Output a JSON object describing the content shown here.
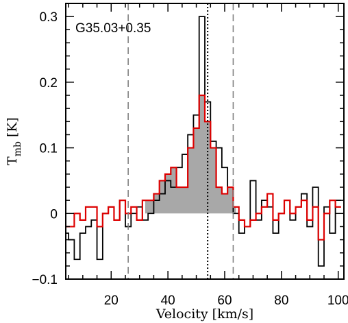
{
  "chart_data": {
    "type": "line",
    "source_label": "G35.03+0.35",
    "xlabel": "Velocity [km/s]",
    "ylabel": {
      "main": "T",
      "subscript": "mb",
      "unit": "[K]"
    },
    "xlim": [
      4,
      102
    ],
    "ylim": [
      -0.1,
      0.32
    ],
    "x_ticks": [
      20,
      40,
      60,
      80,
      100
    ],
    "y_ticks": [
      -0.1,
      0,
      0.1,
      0.2,
      0.3
    ],
    "y_tick_labels": [
      "−0.1",
      "0",
      "0.1",
      "0.2",
      "0.3"
    ],
    "vlines": [
      {
        "x": 26,
        "style": "dashed",
        "color": "#808080"
      },
      {
        "x": 54,
        "style": "dotted",
        "color": "#000000"
      },
      {
        "x": 63,
        "style": "dashed",
        "color": "#808080"
      }
    ],
    "shaded_region": {
      "x_range": [
        32,
        64
      ],
      "series_index": 1,
      "color": "#a8a8a8"
    },
    "series": [
      {
        "style": "step",
        "color": "#000000",
        "x": [
          4,
          6,
          8,
          10,
          12,
          14,
          16,
          18,
          20,
          22,
          24,
          26,
          28,
          30,
          32,
          34,
          36,
          38,
          40,
          42,
          44,
          46,
          48,
          50,
          52,
          54,
          56,
          58,
          60,
          62,
          64,
          66,
          68,
          70,
          72,
          74,
          76,
          78,
          80,
          82,
          84,
          86,
          88,
          90,
          92,
          94,
          96,
          98,
          100
        ],
        "values": [
          -0.03,
          -0.04,
          -0.07,
          -0.03,
          -0.02,
          -0.01,
          -0.07,
          0.0,
          0.01,
          -0.01,
          0.02,
          -0.02,
          0.0,
          0.01,
          -0.01,
          0.0,
          0.02,
          0.03,
          0.05,
          0.04,
          0.07,
          0.09,
          0.12,
          0.15,
          0.3,
          0.17,
          0.11,
          0.1,
          0.07,
          0.04,
          0.0,
          -0.03,
          -0.02,
          0.05,
          -0.01,
          0.02,
          0.01,
          -0.03,
          0.0,
          0.02,
          -0.01,
          0.01,
          0.03,
          -0.02,
          0.04,
          -0.08,
          0.01,
          -0.03,
          0.02
        ]
      },
      {
        "style": "step",
        "color": "#dd0000",
        "x": [
          4,
          6,
          8,
          10,
          12,
          14,
          16,
          18,
          20,
          22,
          24,
          26,
          28,
          30,
          32,
          34,
          36,
          38,
          40,
          42,
          44,
          46,
          48,
          50,
          52,
          54,
          56,
          58,
          60,
          62,
          64,
          66,
          68,
          70,
          72,
          74,
          76,
          78,
          80,
          82,
          84,
          86,
          88,
          90,
          92,
          94,
          96,
          98,
          100
        ],
        "values": [
          -0.02,
          -0.02,
          0.0,
          -0.01,
          0.01,
          0.01,
          -0.02,
          0.0,
          0.01,
          -0.01,
          0.02,
          0.0,
          0.01,
          -0.01,
          0.02,
          0.02,
          0.03,
          0.05,
          0.06,
          0.07,
          0.04,
          0.04,
          0.1,
          0.13,
          0.18,
          0.14,
          0.1,
          0.04,
          0.03,
          0.04,
          0.01,
          -0.01,
          -0.02,
          -0.01,
          0.0,
          0.01,
          0.03,
          -0.01,
          0.0,
          0.02,
          0.0,
          0.01,
          0.02,
          -0.01,
          0.01,
          -0.04,
          0.0,
          0.02,
          0.01
        ]
      }
    ]
  }
}
